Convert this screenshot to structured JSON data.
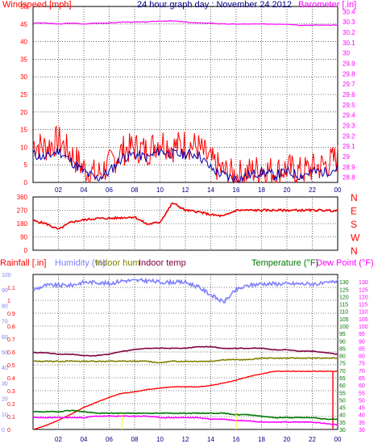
{
  "header": {
    "title": "24 hour graph day : November 24 2012",
    "wind_label": "Windspeed [mph]",
    "baro_label": "Barometer [.in]",
    "rain_label": "Rainfall [.in]",
    "hum_label": "Humidity (%)",
    "inhum_label": "Indoor hum",
    "intemp_label": "Indoor temp",
    "temp_label": "Temperature (°F)",
    "dew_label": "Dew Point (°F)"
  },
  "x_ticks": [
    "02",
    "04",
    "06",
    "08",
    "10",
    "12",
    "14",
    "16",
    "18",
    "20",
    "22",
    "00"
  ],
  "colors": {
    "wind": "#ff0000",
    "wind_avg": "#0000aa",
    "baro": "#ff00ff",
    "dir": "#ee0000",
    "rain": "#ff0000",
    "hum": "#8080ff",
    "inhum": "#808000",
    "intemp": "#800040",
    "temp": "#007700",
    "dew": "#ff00ff",
    "grid": "#000000"
  },
  "chart_data": [
    {
      "type": "line",
      "x": [
        0,
        1,
        2,
        3,
        4,
        5,
        6,
        7,
        8,
        9,
        10,
        11,
        12,
        13,
        14,
        15,
        16,
        17,
        18,
        19,
        20,
        21,
        22,
        23,
        24
      ],
      "ylim": [
        0,
        50
      ],
      "yticks": [
        "0",
        "5",
        "10",
        "15",
        "20",
        "25",
        "30",
        "35",
        "40",
        "45",
        "50"
      ],
      "y2lim": [
        28.75,
        30.45
      ],
      "y2ticks": [
        "28.8",
        "28.9",
        "29",
        "29.1",
        "29.2",
        "29.3",
        "29.4",
        "29.5",
        "29.6",
        "29.7",
        "29.8",
        "29.9",
        "30",
        "30.1",
        "30.2",
        "30.3",
        "30.4"
      ],
      "series": [
        {
          "name": "Windspeed [mph]",
          "axis": "left",
          "values": [
            11,
            10,
            12,
            8,
            4,
            2,
            5,
            9,
            10,
            9,
            12,
            10,
            11,
            10,
            6,
            3,
            2,
            3,
            4,
            3,
            4,
            3,
            4,
            5,
            7
          ]
        },
        {
          "name": "",
          "axis": "left",
          "values": [
            8,
            7,
            9,
            6,
            3,
            1,
            3,
            7,
            8,
            7,
            9,
            8,
            8,
            8,
            4,
            2,
            1,
            2,
            3,
            2,
            3,
            2,
            3,
            3,
            4
          ]
        },
        {
          "name": "Barometer [.in]",
          "axis": "right",
          "values": [
            30.29,
            30.29,
            30.28,
            30.29,
            30.28,
            30.29,
            30.29,
            30.3,
            30.3,
            30.3,
            30.31,
            30.31,
            30.3,
            30.29,
            30.29,
            30.28,
            30.28,
            30.28,
            30.28,
            30.28,
            30.28,
            30.27,
            30.27,
            30.27,
            30.27
          ]
        }
      ]
    },
    {
      "type": "line",
      "x": [
        0,
        1,
        2,
        3,
        4,
        5,
        6,
        7,
        8,
        9,
        10,
        11,
        12,
        13,
        14,
        15,
        16,
        17,
        18,
        19,
        20,
        21,
        22,
        23,
        24
      ],
      "ylim": [
        0,
        360
      ],
      "yticks": [
        "0",
        "90",
        "180",
        "270",
        "360"
      ],
      "y2ticks": [
        "N",
        "W",
        "S",
        "E",
        "N"
      ],
      "series": [
        {
          "name": "",
          "values": [
            200,
            180,
            140,
            190,
            205,
            215,
            215,
            220,
            225,
            175,
            190,
            320,
            270,
            260,
            240,
            230,
            270,
            270,
            270,
            270,
            270,
            270,
            270,
            270,
            265
          ]
        }
      ]
    },
    {
      "type": "line",
      "x": [
        0,
        1,
        2,
        3,
        4,
        5,
        6,
        7,
        8,
        9,
        10,
        11,
        12,
        13,
        14,
        15,
        16,
        17,
        18,
        19,
        20,
        21,
        22,
        23,
        24
      ],
      "ylim": [
        0,
        1.2
      ],
      "yticks": [
        "0",
        "0.1",
        "0.2",
        "0.3",
        "0.4",
        "0.5",
        "0.6",
        "0.7",
        "0.8",
        "0.9",
        "1",
        "1.1"
      ],
      "y2lim": [
        0,
        100
      ],
      "y2ticks": [
        "0",
        "10",
        "20",
        "30",
        "40",
        "50",
        "60",
        "70",
        "80",
        "90",
        "100"
      ],
      "y3lim": [
        30,
        135
      ],
      "y3ticks": [
        "30",
        "35",
        "40",
        "45",
        "50",
        "55",
        "60",
        "65",
        "70",
        "75",
        "80",
        "85",
        "90",
        "95",
        "100",
        "105",
        "110",
        "115",
        "120",
        "125",
        "130"
      ],
      "series": [
        {
          "name": "Rainfall [.in]",
          "axis": "rain",
          "values": [
            0,
            0.03,
            0.07,
            0.12,
            0.17,
            0.21,
            0.25,
            0.28,
            0.29,
            0.31,
            0.32,
            0.33,
            0.33,
            0.33,
            0.34,
            0.36,
            0.38,
            0.41,
            0.43,
            0.45,
            0.45,
            0.45,
            0.45,
            0.45,
            0.45
          ]
        },
        {
          "name": "Humidity (%)",
          "axis": "hum",
          "values": [
            90,
            93,
            93,
            93,
            95,
            95,
            94,
            96,
            96,
            96,
            95,
            95,
            95,
            92,
            87,
            82,
            90,
            93,
            94,
            94,
            94,
            94,
            94,
            94,
            96
          ]
        },
        {
          "name": "Indoor hum",
          "axis": "hum",
          "values": [
            44,
            44,
            44,
            44,
            44,
            44,
            44,
            44,
            44,
            44,
            43,
            44,
            44,
            44,
            44,
            45,
            45,
            45,
            46,
            46,
            46,
            46,
            46,
            46,
            46
          ]
        },
        {
          "name": "Indoor temp",
          "axis": "temp",
          "values": [
            82,
            82,
            81,
            81,
            80,
            80,
            81,
            83,
            84,
            85,
            85,
            85,
            85,
            86,
            86,
            85,
            85,
            85,
            85,
            84,
            84,
            83,
            83,
            82,
            81
          ]
        },
        {
          "name": "Temperature (°F)",
          "axis": "temp",
          "values": [
            42,
            42,
            42,
            43,
            42,
            41,
            41,
            41,
            41,
            41,
            41,
            41,
            41,
            41,
            41,
            41,
            40,
            40,
            39,
            38,
            38,
            38,
            38,
            37,
            37
          ]
        },
        {
          "name": "Dew Point (°F)",
          "axis": "temp",
          "values": [
            38,
            38,
            38,
            38,
            38,
            39,
            39,
            39,
            39,
            39,
            38,
            38,
            38,
            38,
            37,
            37,
            36,
            36,
            35,
            35,
            35,
            35,
            35,
            34,
            33
          ]
        }
      ]
    }
  ]
}
